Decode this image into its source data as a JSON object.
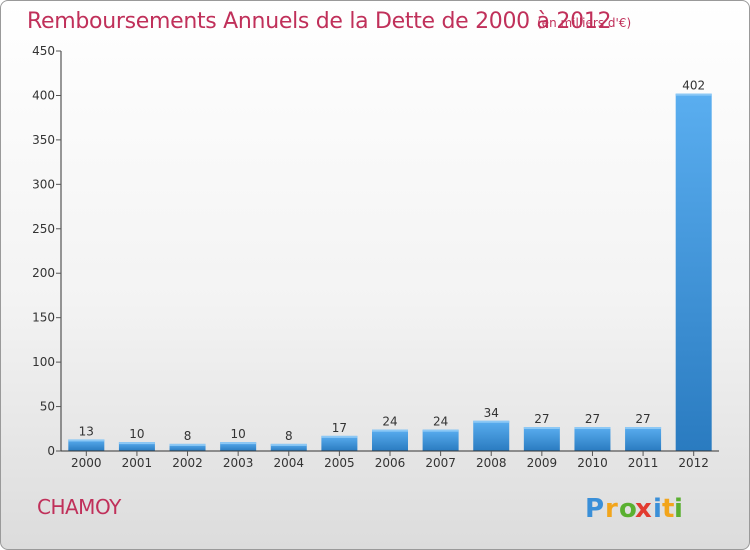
{
  "title": "Remboursements Annuels de la Dette de 2000 à 2012",
  "unit_note": "(en milliers d'€)",
  "commune": "CHAMOY",
  "logo": {
    "text": "Proxiti",
    "letters": [
      "P",
      "r",
      "o",
      "x",
      "i",
      "t",
      "i"
    ],
    "colors": [
      "#3a8fd8",
      "#f2a51c",
      "#5ab030",
      "#e23b30",
      "#3a8fd8",
      "#f2a51c",
      "#5ab030"
    ]
  },
  "colors": {
    "title": "#c0305a",
    "bar_light": "#5aaef0",
    "bar_dark": "#2a7bc0",
    "axis": "#333333",
    "grid_tick": "#555555"
  },
  "chart_data": {
    "type": "bar",
    "categories": [
      "2000",
      "2001",
      "2002",
      "2003",
      "2004",
      "2005",
      "2006",
      "2007",
      "2008",
      "2009",
      "2010",
      "2011",
      "2012"
    ],
    "values": [
      13,
      10,
      8,
      10,
      8,
      17,
      24,
      24,
      34,
      27,
      27,
      27,
      402
    ],
    "ylim": [
      0,
      450
    ],
    "yticks": [
      0,
      50,
      100,
      150,
      200,
      250,
      300,
      350,
      400,
      450
    ],
    "grid": false,
    "legend": "none"
  }
}
